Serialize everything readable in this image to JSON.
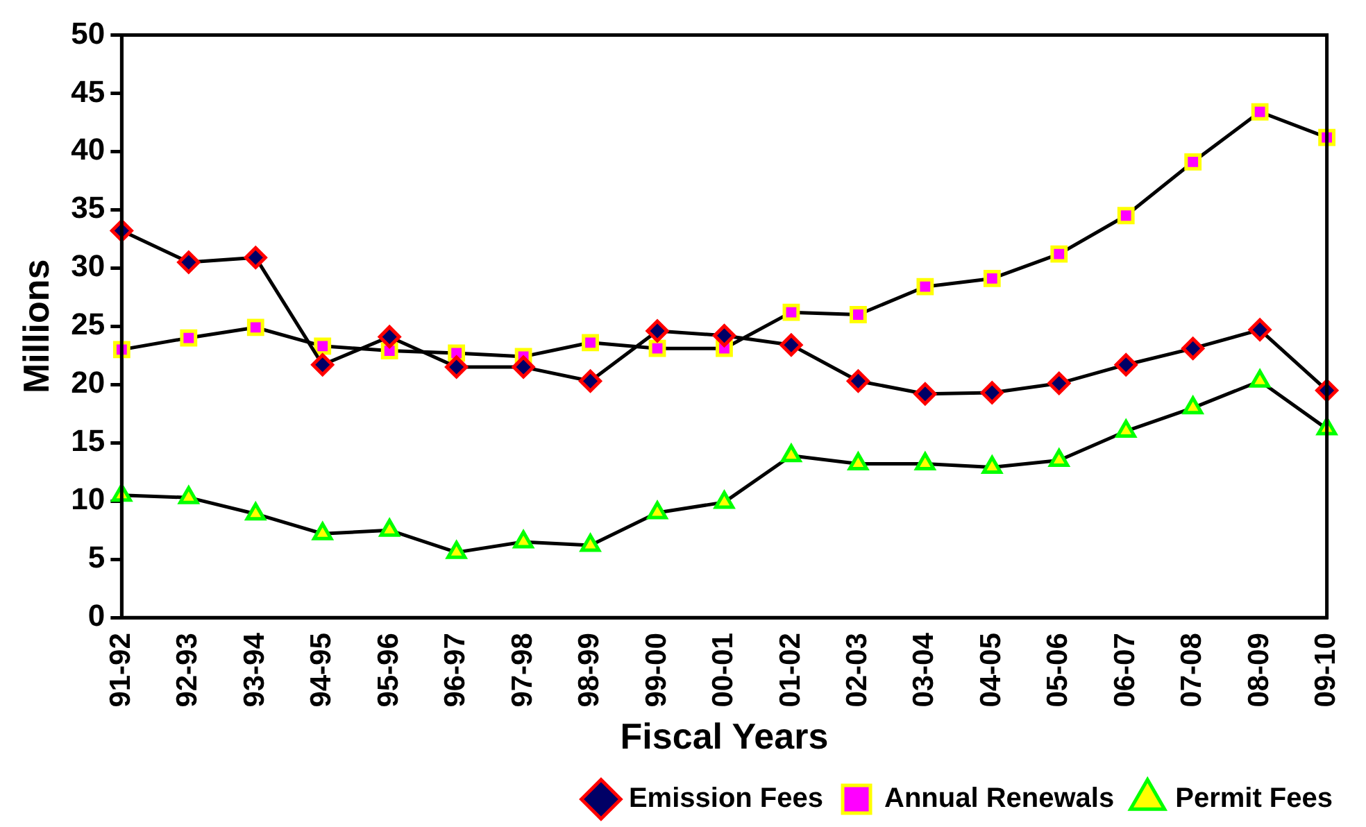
{
  "chart_data": {
    "type": "line",
    "xlabel": "Fiscal Years",
    "ylabel": "Millions",
    "categories": [
      "91-92",
      "92-93",
      "93-94",
      "94-95",
      "95-96",
      "96-97",
      "97-98",
      "98-99",
      "99-00",
      "00-01",
      "01-02",
      "02-03",
      "03-04",
      "04-05",
      "05-06",
      "06-07",
      "07-08",
      "08-09",
      "09-10"
    ],
    "series": [
      {
        "name": "Emission Fees",
        "color": "#000066",
        "marker": "diamond",
        "values": [
          33.2,
          30.5,
          30.9,
          21.7,
          24.1,
          21.5,
          21.5,
          20.3,
          24.6,
          24.2,
          23.4,
          20.3,
          19.2,
          19.3,
          20.1,
          21.7,
          23.1,
          24.7,
          19.5
        ]
      },
      {
        "name": "Annual Renewals",
        "color": "#ff00ff",
        "marker": "square",
        "values": [
          23.0,
          24.0,
          24.9,
          23.3,
          22.9,
          22.7,
          22.4,
          23.6,
          23.1,
          23.1,
          26.2,
          26.0,
          28.4,
          29.1,
          31.2,
          34.5,
          39.1,
          43.4,
          41.2
        ]
      },
      {
        "name": "Permit Fees",
        "color": "#ffff00",
        "marker": "triangle",
        "values": [
          10.5,
          10.3,
          8.9,
          7.2,
          7.5,
          5.6,
          6.5,
          6.2,
          9.0,
          9.9,
          13.9,
          13.2,
          13.2,
          12.9,
          13.5,
          16.0,
          18.0,
          20.3,
          16.2
        ]
      }
    ],
    "ylim": [
      0,
      50
    ],
    "yticks": [
      0,
      5,
      10,
      15,
      20,
      25,
      30,
      35,
      40,
      45,
      50
    ],
    "grid": false,
    "legend": "bottom right",
    "line_style": "solid"
  }
}
